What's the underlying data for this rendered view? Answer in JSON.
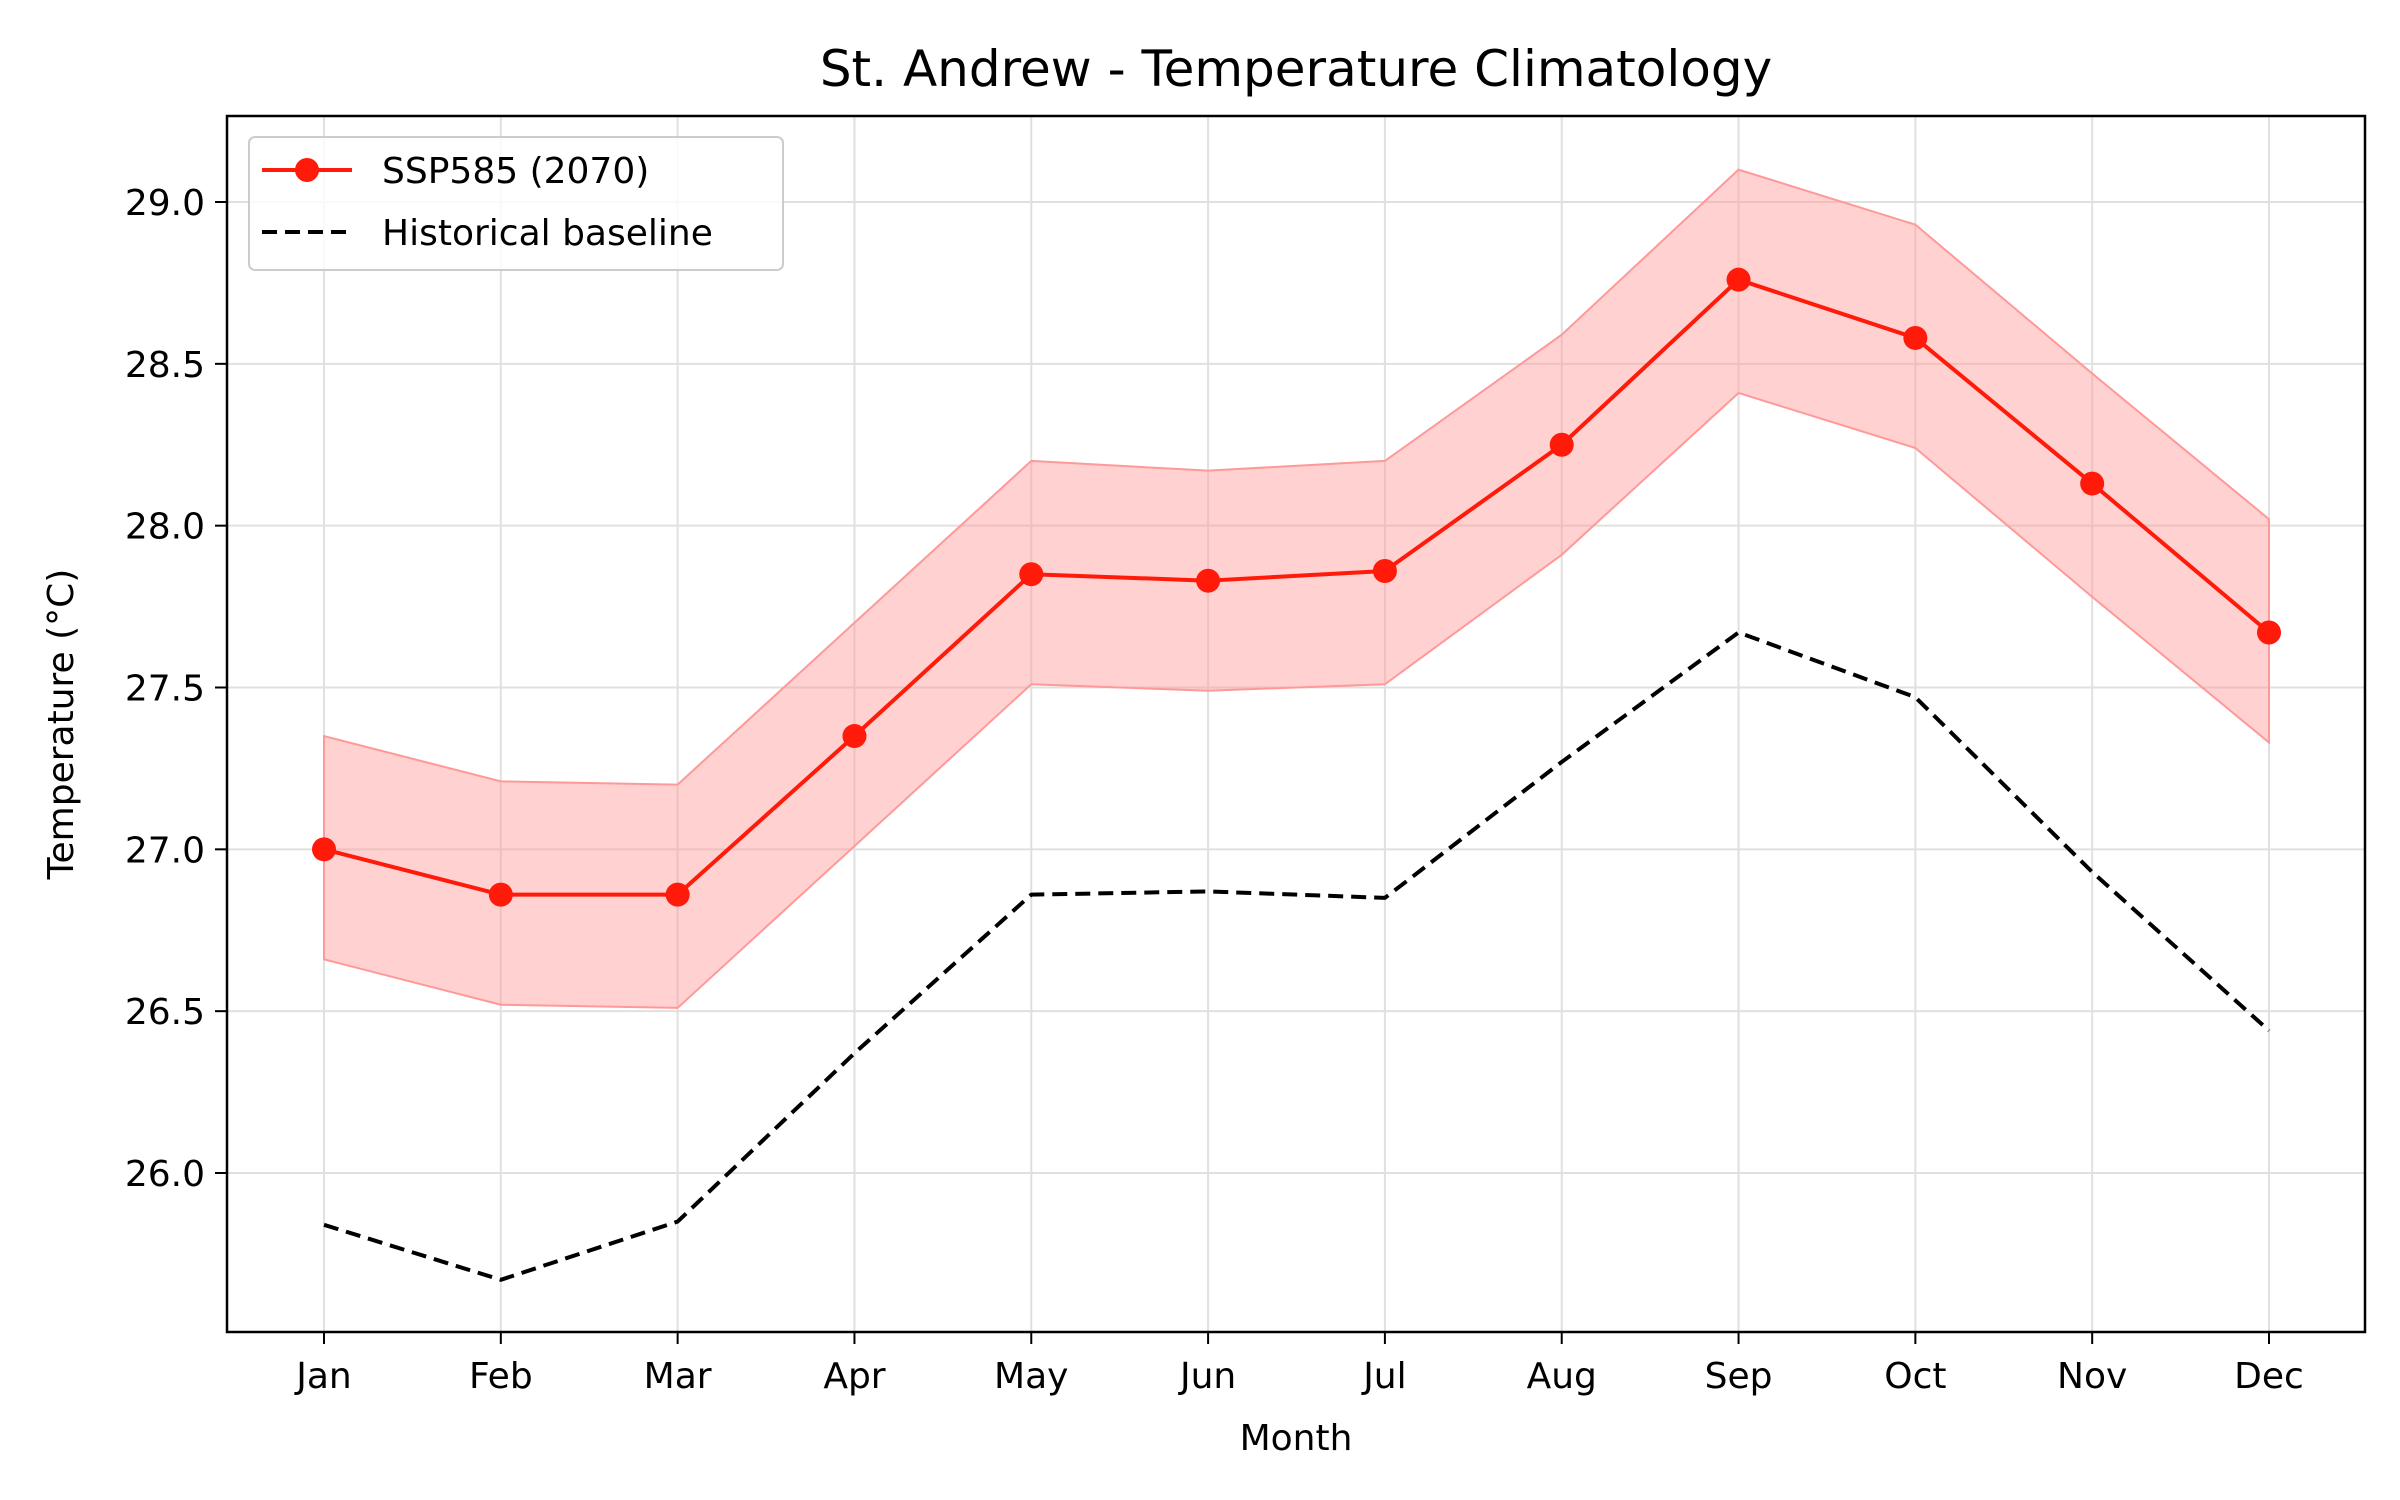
{
  "chart_data": {
    "type": "line",
    "title": "St. Andrew - Temperature Climatology",
    "xlabel": "Month",
    "ylabel": "Temperature (°C)",
    "categories": [
      "Jan",
      "Feb",
      "Mar",
      "Apr",
      "May",
      "Jun",
      "Jul",
      "Aug",
      "Sep",
      "Oct",
      "Nov",
      "Dec"
    ],
    "ylim": [
      25.5,
      29.27
    ],
    "yticks": [
      26.0,
      26.5,
      27.0,
      27.5,
      28.0,
      28.5,
      29.0
    ],
    "ytick_labels": [
      "26.0",
      "26.5",
      "27.0",
      "27.5",
      "28.0",
      "28.5",
      "29.0"
    ],
    "grid": true,
    "legend_position": "top-left",
    "series": [
      {
        "name": "SSP585 (2070)",
        "style": "solid-marker",
        "color": "#ff1a0a",
        "values": [
          27.0,
          26.86,
          26.86,
          27.35,
          27.85,
          27.83,
          27.86,
          28.25,
          28.76,
          28.58,
          28.13,
          27.67
        ],
        "band_lower": [
          26.66,
          26.52,
          26.51,
          27.01,
          27.51,
          27.49,
          27.51,
          27.91,
          28.41,
          28.24,
          27.78,
          27.33
        ],
        "band_upper": [
          27.35,
          27.21,
          27.2,
          27.7,
          28.2,
          28.17,
          28.2,
          28.59,
          29.1,
          28.93,
          28.47,
          28.02
        ],
        "band_color": "#ff9999"
      },
      {
        "name": "Historical baseline",
        "style": "dashed",
        "color": "#000000",
        "values": [
          25.84,
          25.67,
          25.85,
          26.37,
          26.86,
          26.87,
          26.85,
          27.27,
          27.67,
          27.47,
          26.93,
          26.44
        ]
      }
    ]
  }
}
